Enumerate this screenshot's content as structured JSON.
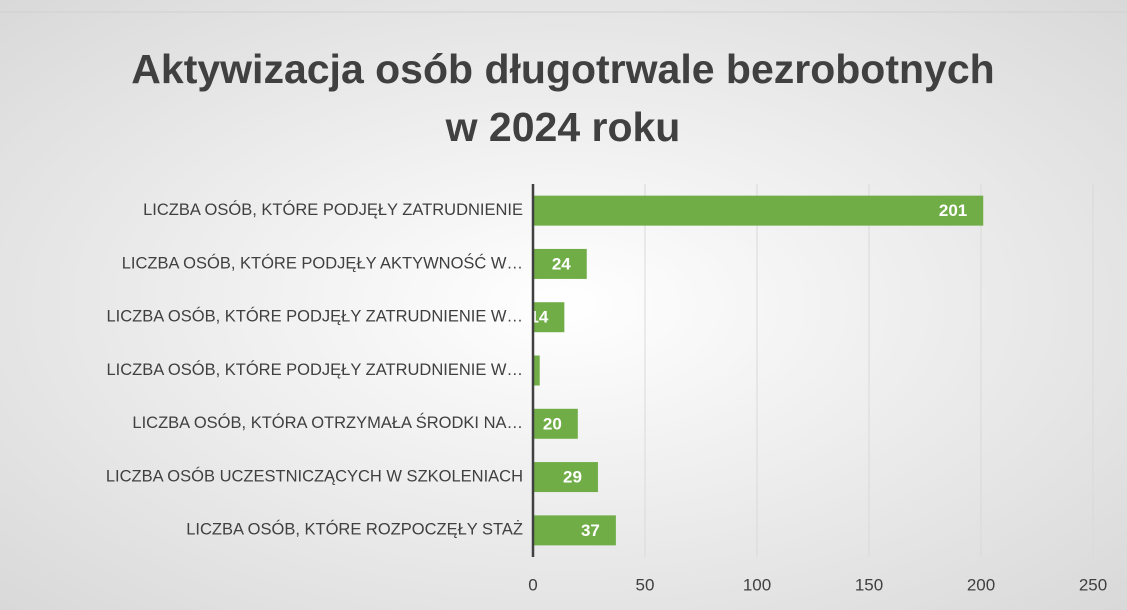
{
  "chart_data": {
    "type": "barh",
    "title": [
      "Aktywizacja osób długotrwale bezrobotnych",
      "w 2024 roku"
    ],
    "categories": [
      "LICZBA OSÓB, KTÓRE PODJĘŁY ZATRUDNIENIE",
      "LICZBA OSÓB, KTÓRE PODJĘŁY AKTYWNOŚĆ W…",
      "LICZBA OSÓB, KTÓRE PODJĘŁY ZATRUDNIENIE W…",
      "LICZBA OSÓB, KTÓRE PODJĘŁY ZATRUDNIENIE W…",
      "LICZBA OSÓB, KTÓRA OTRZYMAŁA ŚRODKI NA…",
      "LICZBA OSÓB UCZESTNICZĄCYCH W SZKOLENIACH",
      "LICZBA OSÓB, KTÓRE ROZPOCZĘŁY STAŻ"
    ],
    "values": [
      201,
      24,
      14,
      3,
      20,
      29,
      37
    ],
    "color": "#70ad47",
    "xlim": [
      0,
      250
    ],
    "xticks": [
      0,
      50,
      100,
      150,
      200,
      250
    ],
    "grid": true
  }
}
